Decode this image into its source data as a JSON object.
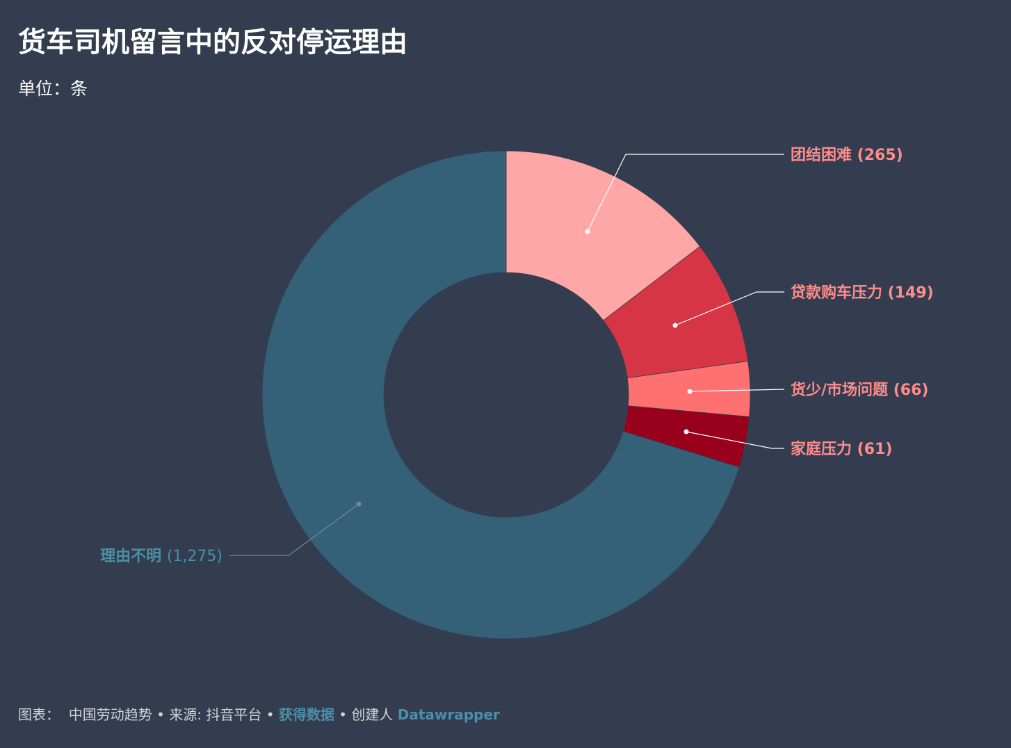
{
  "chart_data": {
    "type": "pie",
    "variant": "donut",
    "title": "货车司机留言中的反对停运理由",
    "subtitle": "单位：条",
    "slices": [
      {
        "label": "团结困难",
        "value": 265,
        "display": "(265)",
        "color": "#ffa6a6",
        "label_color": "#ff8c8c"
      },
      {
        "label": "贷款购车压力",
        "value": 149,
        "display": "(149)",
        "color": "#d63545",
        "label_color": "#ff8c8c"
      },
      {
        "label": "货少/市场问题",
        "value": 66,
        "display": "(66)",
        "color": "#ff7070",
        "label_color": "#ff8c8c"
      },
      {
        "label": "家庭压力",
        "value": 61,
        "display": "(61)",
        "color": "#99001c",
        "label_color": "#ff8c8c"
      },
      {
        "label": "理由不明",
        "value": 1275,
        "display": "(1,275)",
        "color": "#346078",
        "label_color": "#4a8fa8"
      }
    ]
  },
  "footer": {
    "chart_label": "图表：",
    "author": "中国劳动趋势",
    "sep1": " • ",
    "source_label": "来源: ",
    "source": "抖音平台",
    "sep2": " • ",
    "get_data": "获得数据",
    "sep3": " • ",
    "created_by": "创建人 ",
    "tool": "Datawrapper"
  }
}
